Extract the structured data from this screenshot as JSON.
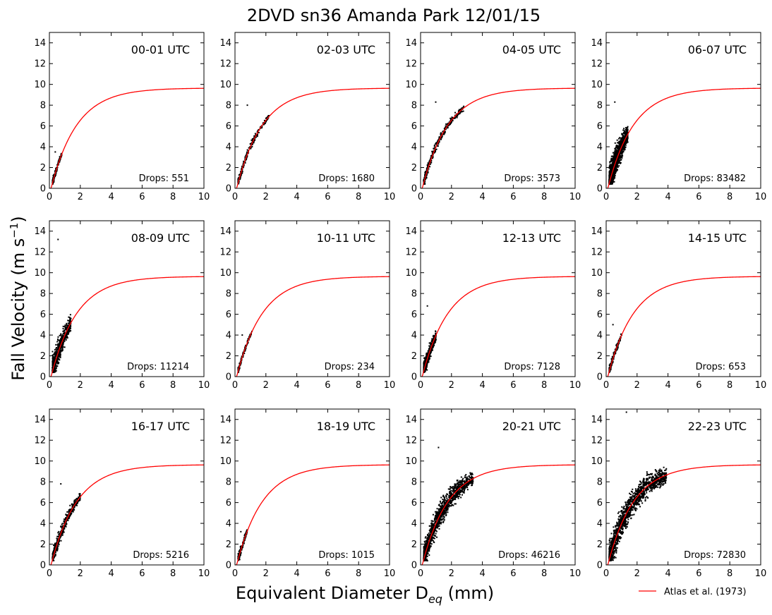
{
  "figure": {
    "title": "2DVD sn36 Amanda Park 12/01/15",
    "xlabel_main": "Equivalent Diameter D",
    "xlabel_sub": "eq",
    "xlabel_unit": " (mm)",
    "ylabel_main": "Fall Velocity (m s",
    "ylabel_sup": "−1",
    "ylabel_close": ")",
    "legend_label": "Atlas et al. (1973)",
    "fit_color": "#ff0000",
    "point_color": "#000000"
  },
  "chart_data": {
    "type": "scatter",
    "layout": "3x4 small multiples",
    "xlim": [
      0,
      10
    ],
    "ylim": [
      0,
      15
    ],
    "xticks": [
      0,
      2,
      4,
      6,
      8,
      10
    ],
    "yticks": [
      0,
      2,
      4,
      6,
      8,
      10,
      12,
      14
    ],
    "fit_curve": {
      "name": "Atlas et al. (1973)",
      "equation": "v = 9.65 - 10.3*exp(-0.6*D)",
      "color": "#ff0000"
    },
    "drops_prefix": "Drops: ",
    "panels": [
      {
        "label": "00-01 UTC",
        "drops": 551,
        "d_min": 0.2,
        "d_max": 0.8,
        "v_spread": 0.6,
        "v_extreme": 3.5
      },
      {
        "label": "02-03 UTC",
        "drops": 1680,
        "d_min": 0.2,
        "d_max": 2.2,
        "v_spread": 0.6,
        "v_extreme": 8.0
      },
      {
        "label": "04-05 UTC",
        "drops": 3573,
        "d_min": 0.2,
        "d_max": 2.8,
        "v_spread": 0.7,
        "v_extreme": 8.3
      },
      {
        "label": "06-07 UTC",
        "drops": 83482,
        "d_min": 0.2,
        "d_max": 1.4,
        "v_spread": 2.2,
        "v_extreme": 8.3
      },
      {
        "label": "08-09 UTC",
        "drops": 11214,
        "d_min": 0.2,
        "d_max": 1.4,
        "v_spread": 1.8,
        "v_extreme": 13.2
      },
      {
        "label": "10-11 UTC",
        "drops": 234,
        "d_min": 0.2,
        "d_max": 1.1,
        "v_spread": 0.4,
        "v_extreme": 4.0
      },
      {
        "label": "12-13 UTC",
        "drops": 7128,
        "d_min": 0.2,
        "d_max": 1.0,
        "v_spread": 1.2,
        "v_extreme": 6.8
      },
      {
        "label": "14-15 UTC",
        "drops": 653,
        "d_min": 0.2,
        "d_max": 1.0,
        "v_spread": 0.6,
        "v_extreme": 5.0
      },
      {
        "label": "16-17 UTC",
        "drops": 5216,
        "d_min": 0.2,
        "d_max": 2.0,
        "v_spread": 1.0,
        "v_extreme": 7.8
      },
      {
        "label": "18-19 UTC",
        "drops": 1015,
        "d_min": 0.2,
        "d_max": 0.8,
        "v_spread": 0.6,
        "v_extreme": 3.2
      },
      {
        "label": "20-21 UTC",
        "drops": 46216,
        "d_min": 0.2,
        "d_max": 3.4,
        "v_spread": 1.8,
        "v_extreme": 11.3
      },
      {
        "label": "22-23 UTC",
        "drops": 72830,
        "d_min": 0.2,
        "d_max": 3.9,
        "v_spread": 2.0,
        "v_extreme": 14.7
      }
    ]
  }
}
